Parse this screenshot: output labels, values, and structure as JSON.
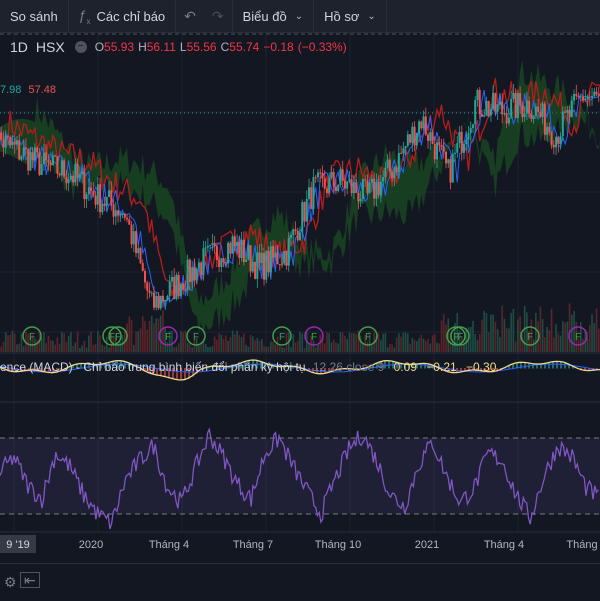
{
  "toolbar": {
    "compare": "So sánh",
    "indicators": "Các chỉ báo",
    "chart_type": "Biểu đồ",
    "profile": "Hồ sơ"
  },
  "legend": {
    "timeframe": "1D",
    "exchange": "HSX",
    "open_label": "O",
    "open": "55.93",
    "high_label": "H",
    "high": "56.11",
    "low_label": "L",
    "low": "55.56",
    "close_label": "C",
    "close": "55.74",
    "change": "−0.18",
    "change_pct": "(−0.33%)"
  },
  "ichimoku_values": {
    "v1": "7.98",
    "v2": "57.48"
  },
  "macd_legend": {
    "title": "ence (MACD) - Chỉ báo trung bình biến đổi phân kỳ hội tụ",
    "params": "12 26 close 9",
    "v1": "0.09",
    "v2": "−0.21",
    "v3": "−0.30"
  },
  "time_axis": {
    "labels": [
      "9 '19",
      "2020",
      "Tháng 4",
      "Tháng 7",
      "Tháng 10",
      "2021",
      "Tháng 4",
      "Tháng"
    ]
  },
  "event_marker_label": "F",
  "colors": {
    "up": "#26a69a",
    "down": "#ef5350",
    "rsi": "#7e57c2",
    "macd_line": "#f0d98c",
    "signal_line": "#2962ff",
    "kumo_bull": "#1b5e20",
    "kumo_bear": "#4a1418"
  },
  "chart_data": {
    "type": "line",
    "ohlc": {
      "open": 55.93,
      "high": 56.11,
      "low": 55.56,
      "close": 55.74,
      "change": -0.18,
      "change_pct": -0.33
    },
    "price_series": [
      {
        "t": "2019-09",
        "v": 52
      },
      {
        "t": "2019-10",
        "v": 50
      },
      {
        "t": "2019-11",
        "v": 48
      },
      {
        "t": "2019-12",
        "v": 47
      },
      {
        "t": "2020-01",
        "v": 44
      },
      {
        "t": "2020-02",
        "v": 42
      },
      {
        "t": "2020-03",
        "v": 30
      },
      {
        "t": "2020-04",
        "v": 33
      },
      {
        "t": "2020-05",
        "v": 36
      },
      {
        "t": "2020-06",
        "v": 38
      },
      {
        "t": "2020-07",
        "v": 35
      },
      {
        "t": "2020-08",
        "v": 37
      },
      {
        "t": "2020-09",
        "v": 45
      },
      {
        "t": "2020-10",
        "v": 46
      },
      {
        "t": "2020-11",
        "v": 44
      },
      {
        "t": "2020-12",
        "v": 48
      },
      {
        "t": "2021-01",
        "v": 54
      },
      {
        "t": "2021-02",
        "v": 47
      },
      {
        "t": "2021-03",
        "v": 56
      },
      {
        "t": "2021-04",
        "v": 55
      },
      {
        "t": "2021-05",
        "v": 56
      },
      {
        "t": "2021-06",
        "v": 52
      },
      {
        "t": "2021-07",
        "v": 57
      },
      {
        "t": "2021-08",
        "v": 56
      }
    ],
    "rsi_series": [
      52,
      60,
      45,
      38,
      62,
      55,
      40,
      30,
      25,
      48,
      58,
      66,
      44,
      36,
      54,
      72,
      60,
      46,
      38,
      62,
      70,
      55,
      42,
      30,
      48,
      64,
      72,
      58,
      40,
      34,
      56,
      68,
      50,
      36,
      44,
      62,
      58,
      40,
      28,
      50,
      66,
      60,
      44,
      38
    ],
    "rsi_bounds": [
      30,
      70
    ],
    "event_markers": [
      "F",
      "F",
      "F",
      "F",
      "F",
      "F",
      "F",
      "F",
      "F",
      "F"
    ]
  }
}
